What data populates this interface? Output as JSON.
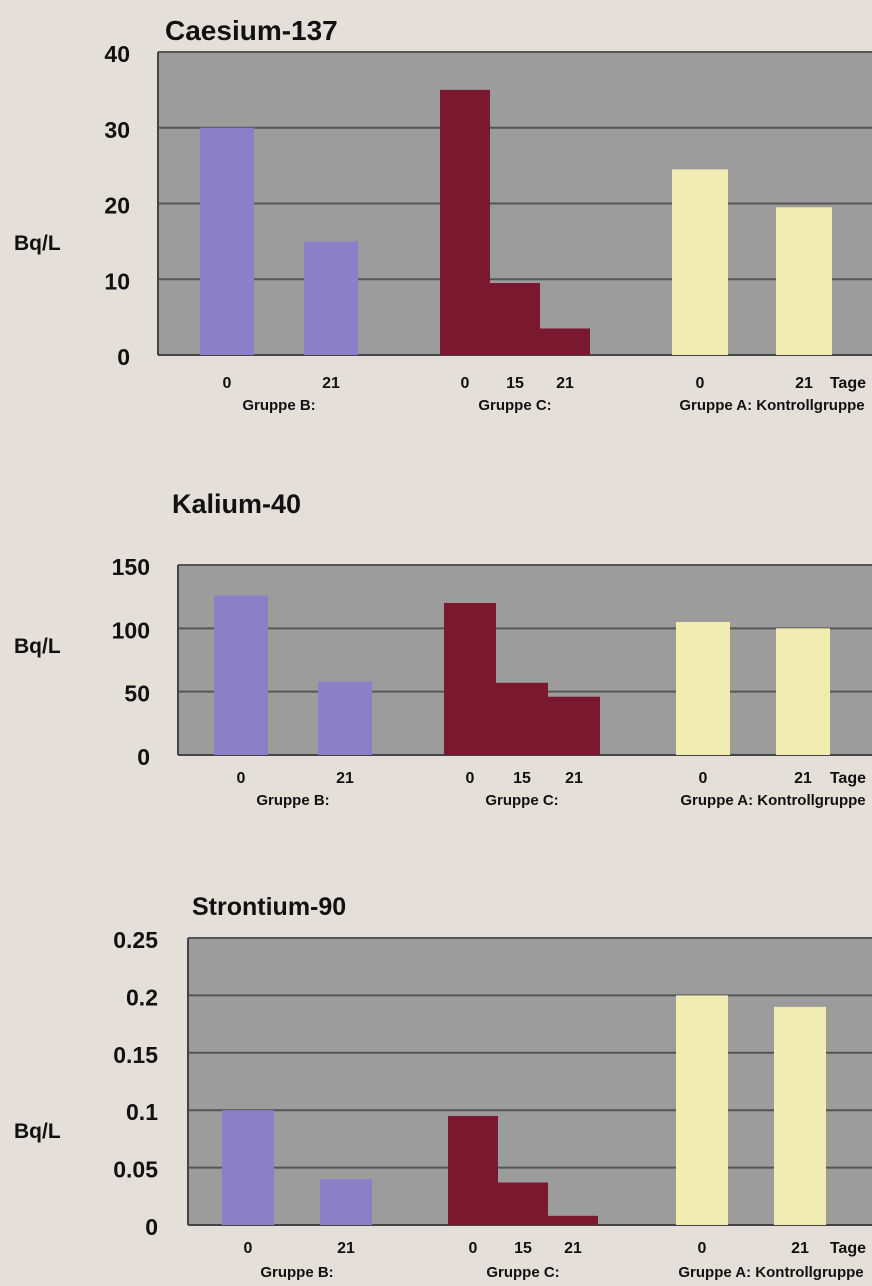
{
  "chart_data": [
    {
      "type": "bar",
      "title": "Caesium-137",
      "ylabel": "Bq/L",
      "ylim": [
        0,
        40
      ],
      "yticks": [
        "0",
        "10",
        "20",
        "30",
        "40"
      ],
      "x_unit": "Tage",
      "groups": [
        {
          "name": "Gruppe B:",
          "categories": [
            "0",
            "21"
          ],
          "values": [
            30,
            15
          ],
          "color": "#8b80c8"
        },
        {
          "name": "Gruppe C:",
          "categories": [
            "0",
            "15",
            "21"
          ],
          "values": [
            35,
            9.5,
            3.5
          ],
          "color": "#7a1830"
        },
        {
          "name": "Gruppe A: Kontrollgruppe",
          "categories": [
            "0",
            "21"
          ],
          "values": [
            24.5,
            19.5
          ],
          "color": "#f0ecb2"
        }
      ]
    },
    {
      "type": "bar",
      "title": "Kalium-40",
      "ylabel": "Bq/L",
      "ylim": [
        0,
        150
      ],
      "yticks": [
        "0",
        "50",
        "100",
        "150"
      ],
      "x_unit": "Tage",
      "groups": [
        {
          "name": "Gruppe B:",
          "categories": [
            "0",
            "21"
          ],
          "values": [
            126,
            58
          ],
          "color": "#8b80c8"
        },
        {
          "name": "Gruppe C:",
          "categories": [
            "0",
            "15",
            "21"
          ],
          "values": [
            120,
            57,
            46
          ],
          "color": "#7a1830"
        },
        {
          "name": "Gruppe A: Kontrollgruppe",
          "categories": [
            "0",
            "21"
          ],
          "values": [
            105,
            100
          ],
          "color": "#f0ecb2"
        }
      ]
    },
    {
      "type": "bar",
      "title": "Strontium-90",
      "ylabel": "Bq/L",
      "ylim": [
        0,
        0.25
      ],
      "yticks": [
        "0",
        "0.05",
        "0.1",
        "0.15",
        "0.2",
        "0.25"
      ],
      "x_unit": "Tage",
      "groups": [
        {
          "name": "Gruppe B:",
          "categories": [
            "0",
            "21"
          ],
          "values": [
            0.1,
            0.04
          ],
          "color": "#8b80c8"
        },
        {
          "name": "Gruppe C:",
          "categories": [
            "0",
            "15",
            "21"
          ],
          "values": [
            0.095,
            0.037,
            0.008
          ],
          "color": "#7a1830"
        },
        {
          "name": "Gruppe A: Kontrollgruppe",
          "categories": [
            "0",
            "21"
          ],
          "values": [
            0.2,
            0.19
          ],
          "color": "#f0ecb2"
        }
      ]
    }
  ]
}
